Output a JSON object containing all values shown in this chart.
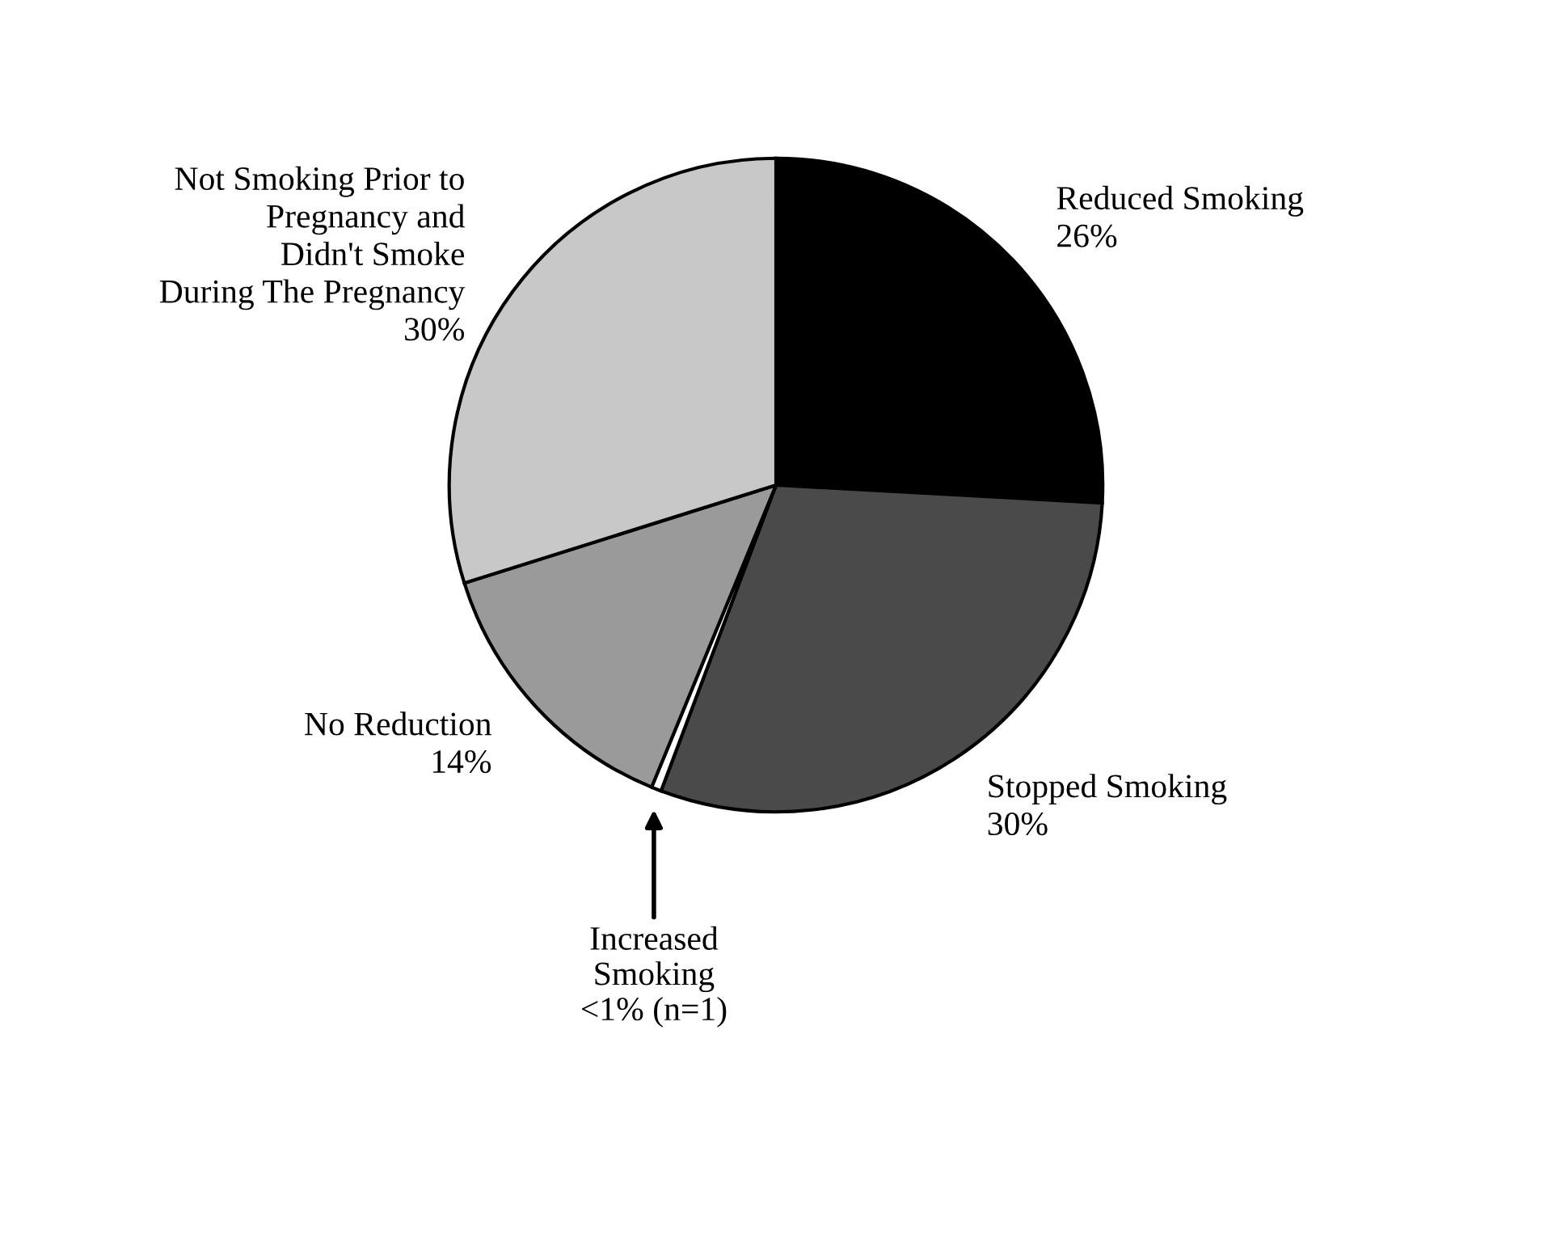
{
  "chart_data": {
    "type": "pie",
    "categories": [
      "Reduced Smoking",
      "Stopped Smoking",
      "Increased\nSmoking",
      "No Reduction",
      "Not Smoking Prior to\nPregnancy and\nDidn't Smoke\nDuring The Pregnancy"
    ],
    "values": [
      26,
      30,
      0.5,
      14,
      30
    ],
    "value_labels": [
      "26%",
      "30%",
      "<1% (n=1)",
      "14%",
      "30%"
    ],
    "colors": [
      "#000000",
      "#4a4a4a",
      "#ffffff",
      "#9a9a9a",
      "#c8c8c8"
    ]
  }
}
